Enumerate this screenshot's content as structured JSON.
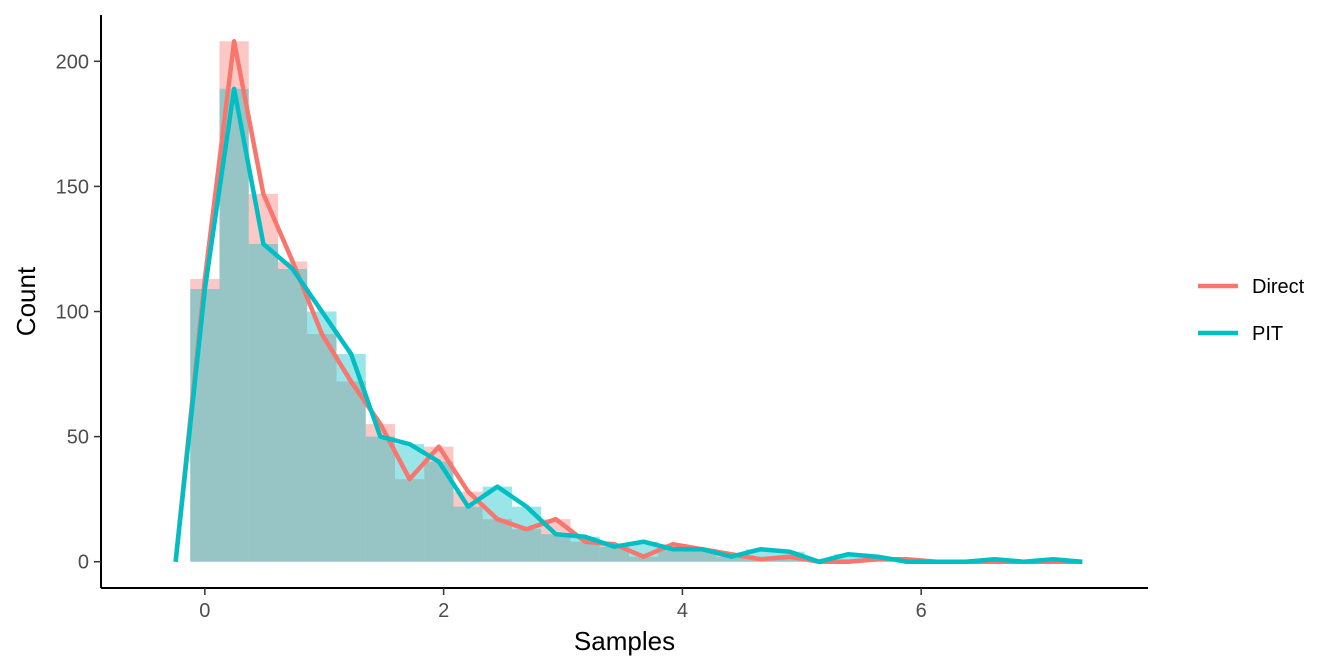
{
  "chart_data": {
    "type": "histogram",
    "xlabel": "Samples",
    "ylabel": "Count",
    "xlim": [
      -0.87,
      7.9
    ],
    "ylim": [
      -10.5,
      218.5
    ],
    "x_ticks": [
      0,
      2,
      4,
      6
    ],
    "y_ticks": [
      0,
      50,
      100,
      150,
      200
    ],
    "bin_width": 0.245,
    "legend_position": "right",
    "grid": false,
    "series": [
      {
        "name": "Direct",
        "color": "#F8766D",
        "bin_centers": [
          -0.245,
          0,
          0.245,
          0.49,
          0.735,
          0.98,
          1.225,
          1.47,
          1.715,
          1.96,
          2.205,
          2.45,
          2.695,
          2.94,
          3.185,
          3.43,
          3.675,
          3.92,
          4.165,
          4.41,
          4.655,
          4.9,
          5.145,
          5.39,
          5.635,
          5.88,
          6.125,
          6.37,
          6.615,
          6.86,
          7.105,
          7.35
        ],
        "counts": [
          0,
          113,
          208,
          147,
          120,
          91,
          72,
          55,
          33,
          46,
          28,
          17,
          13,
          17,
          8,
          7,
          2,
          7,
          5,
          3,
          1,
          2,
          0,
          0,
          1,
          1,
          0,
          0,
          0,
          0,
          0,
          0
        ]
      },
      {
        "name": "PIT",
        "color": "#00BFC4",
        "bin_centers": [
          -0.245,
          0,
          0.245,
          0.49,
          0.735,
          0.98,
          1.225,
          1.47,
          1.715,
          1.96,
          2.205,
          2.45,
          2.695,
          2.94,
          3.185,
          3.43,
          3.675,
          3.92,
          4.165,
          4.41,
          4.655,
          4.9,
          5.145,
          5.39,
          5.635,
          5.88,
          6.125,
          6.37,
          6.615,
          6.86,
          7.105,
          7.35
        ],
        "counts": [
          0,
          109,
          189,
          127,
          117,
          100,
          83,
          50,
          47,
          40,
          22,
          30,
          22,
          11,
          10,
          6,
          8,
          5,
          5,
          2,
          5,
          4,
          0,
          3,
          2,
          0,
          0,
          0,
          1,
          0,
          1,
          0
        ]
      }
    ]
  }
}
